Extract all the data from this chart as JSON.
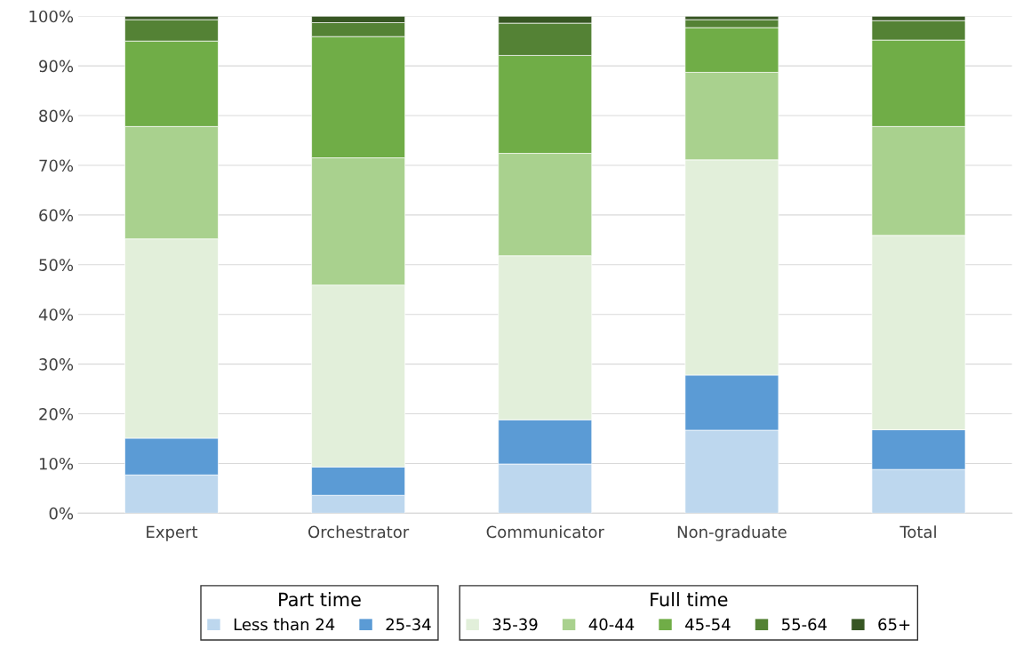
{
  "chart_data": {
    "type": "bar",
    "stacked": true,
    "categories": [
      "Expert",
      "Orchestrator",
      "Communicator",
      "Non-graduate",
      "Total"
    ],
    "series": [
      {
        "name": "Less than 24",
        "color": "#bdd7ee",
        "values": [
          7.7,
          3.6,
          9.9,
          16.7,
          8.8
        ]
      },
      {
        "name": "25-34",
        "color": "#5b9bd5",
        "values": [
          7.4,
          5.7,
          8.9,
          11.1,
          8.0
        ]
      },
      {
        "name": "35-39",
        "color": "#e2efda",
        "values": [
          40.1,
          36.6,
          33.0,
          43.3,
          39.1
        ]
      },
      {
        "name": "40-44",
        "color": "#a9d18e",
        "values": [
          22.6,
          25.6,
          20.6,
          17.6,
          21.9
        ]
      },
      {
        "name": "45-54",
        "color": "#70ad47",
        "values": [
          17.2,
          24.4,
          19.7,
          9.0,
          17.4
        ]
      },
      {
        "name": "55-64",
        "color": "#548235",
        "values": [
          4.3,
          2.8,
          6.5,
          1.6,
          3.9
        ]
      },
      {
        "name": "65+",
        "color": "#375623",
        "values": [
          0.7,
          1.3,
          1.4,
          0.7,
          0.9
        ]
      }
    ],
    "ylim": [
      0,
      100
    ],
    "yticks": [
      {
        "value": 0,
        "label": "0%"
      },
      {
        "value": 10,
        "label": "10%"
      },
      {
        "value": 20,
        "label": "20%"
      },
      {
        "value": 30,
        "label": "30%"
      },
      {
        "value": 40,
        "label": "40%"
      },
      {
        "value": 50,
        "label": "50%"
      },
      {
        "value": 60,
        "label": "60%"
      },
      {
        "value": 70,
        "label": "70%"
      },
      {
        "value": 80,
        "label": "80%"
      },
      {
        "value": 90,
        "label": "90%"
      },
      {
        "value": 100,
        "label": "100%"
      }
    ],
    "grid": "y",
    "legend": "bottom",
    "annotations": [
      "Part time",
      "Full time"
    ]
  }
}
